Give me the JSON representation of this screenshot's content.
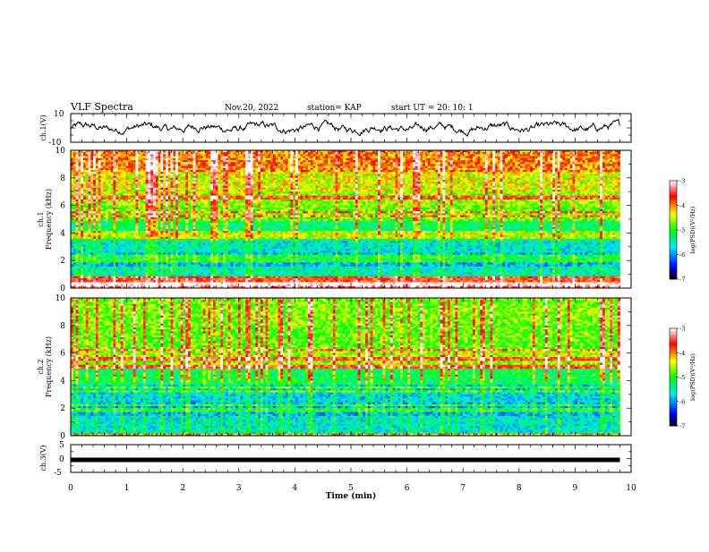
{
  "header": {
    "title": "VLF Spectra",
    "date": "Nov.20, 2022",
    "station": "station= KAP",
    "start": "start  UT  =   20: 10: 1"
  },
  "chart_data": [
    {
      "name": "ch1-waveform",
      "type": "line",
      "ylabel": "ch.1(V)",
      "ylim": [
        -10,
        10
      ],
      "yticks": [
        "10",
        "-10"
      ],
      "xlim": [
        0,
        10
      ],
      "x_extent_min": 9.8,
      "note_values": "noisy trace centered around 0 V with excursions of about +/-5 V"
    },
    {
      "name": "ch1-spectrogram",
      "type": "heatmap",
      "ylabel": "ch.1\nFrequency  (kHz)",
      "ylim": [
        0,
        10
      ],
      "yticks": [
        "0",
        "2",
        "4",
        "6",
        "8",
        "10"
      ],
      "xlim": [
        0,
        10
      ],
      "x_extent_min": 9.8,
      "colorbar": {
        "label": "log(PSD)(V²/Hz)",
        "range": [
          -7,
          -3
        ],
        "ticks": [
          "-3",
          "-4",
          "-5",
          "-6",
          "-7"
        ],
        "colormap": [
          "#000000",
          "#0000ff",
          "#00e5ff",
          "#00ff00",
          "#ffff00",
          "#ff0000",
          "#ffffff"
        ]
      },
      "bands_khz": [
        {
          "f": [
            0.0,
            0.15
          ],
          "level": -3.4
        },
        {
          "f": [
            0.15,
            0.8
          ],
          "level": -3.7
        },
        {
          "f": [
            0.8,
            1.6
          ],
          "level": -5.5
        },
        {
          "f": [
            1.6,
            2.6
          ],
          "level": -5.9
        },
        {
          "f": [
            2.6,
            3.4
          ],
          "level": -5.6
        },
        {
          "f": [
            3.4,
            4.8
          ],
          "level": -5.3
        },
        {
          "f": [
            4.8,
            6.0
          ],
          "level": -4.8
        },
        {
          "f": [
            6.0,
            7.0
          ],
          "level": -4.6
        },
        {
          "f": [
            7.0,
            8.5
          ],
          "level": -4.4
        },
        {
          "f": [
            8.5,
            10.0
          ],
          "level": -4.0
        }
      ],
      "lines_khz": [
        0.3,
        2.0,
        2.3,
        3.7,
        4.0,
        5.2,
        5.5,
        6.6
      ]
    },
    {
      "name": "ch2-spectrogram",
      "type": "heatmap",
      "ylabel": "ch.2\nFrequency  (kHz)",
      "ylim": [
        0,
        10
      ],
      "yticks": [
        "0",
        "2",
        "4",
        "6",
        "8",
        "10"
      ],
      "xlim": [
        0,
        10
      ],
      "x_extent_min": 9.8,
      "colorbar": {
        "label": "log(PSD)(V²/Hz)",
        "range": [
          -7,
          -3
        ],
        "ticks": [
          "-3",
          "-4",
          "-5",
          "-6",
          "-7"
        ],
        "colormap": [
          "#000000",
          "#0000ff",
          "#00e5ff",
          "#00ff00",
          "#ffff00",
          "#ff0000",
          "#ffffff"
        ]
      },
      "bands_khz": [
        {
          "f": [
            0.0,
            0.2
          ],
          "level": -4.2
        },
        {
          "f": [
            0.2,
            1.5
          ],
          "level": -5.6
        },
        {
          "f": [
            1.5,
            2.5
          ],
          "level": -5.9
        },
        {
          "f": [
            2.5,
            3.7
          ],
          "level": -5.7
        },
        {
          "f": [
            3.7,
            4.8
          ],
          "level": -5.2
        },
        {
          "f": [
            4.8,
            6.2
          ],
          "level": -4.6
        },
        {
          "f": [
            6.2,
            8.0
          ],
          "level": -4.8
        },
        {
          "f": [
            8.0,
            10.0
          ],
          "level": -4.7
        }
      ],
      "lines_khz": [
        1.9,
        2.2,
        3.2,
        3.5,
        5.0,
        5.6,
        6.2
      ]
    },
    {
      "name": "ch3-waveform",
      "type": "line",
      "ylabel": "ch.3(V)",
      "ylim": [
        -5,
        5
      ],
      "yticks": [
        "5",
        "0",
        "-5"
      ],
      "xlim": [
        0,
        10
      ],
      "xticks": [
        "0",
        "1",
        "2",
        "3",
        "4",
        "5",
        "6",
        "7",
        "8",
        "9",
        "10"
      ],
      "xlabel": "Time  (min)",
      "x_extent_min": 9.8,
      "constant_value": -0.5,
      "note_values": "nearly constant trace at about -0.5 V"
    }
  ]
}
